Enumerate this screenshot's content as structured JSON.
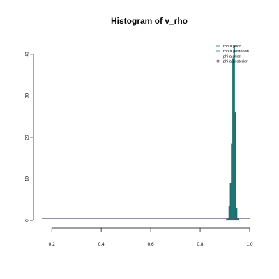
{
  "chart_data": {
    "type": "bar",
    "title": "Histogram of v_rho",
    "xlabel": "",
    "ylabel": "",
    "xlim": [
      0.16,
      1.0
    ],
    "ylim": [
      0,
      43
    ],
    "x_ticks": [
      0.2,
      0.4,
      0.6,
      0.8,
      1.0
    ],
    "x_tick_labels": [
      "0.2",
      "0.4",
      "0.6",
      "0.8",
      "1.0"
    ],
    "y_ticks": [
      0,
      10,
      20,
      30,
      40
    ],
    "y_tick_labels": [
      "0",
      "10",
      "20",
      "30",
      "40"
    ],
    "bar_color": "#1a7070",
    "bins": [
      {
        "x0": 0.905,
        "x1": 0.91,
        "count": 0.3
      },
      {
        "x0": 0.91,
        "x1": 0.915,
        "count": 0.6
      },
      {
        "x0": 0.915,
        "x1": 0.92,
        "count": 3.5
      },
      {
        "x0": 0.92,
        "x1": 0.925,
        "count": 9.0
      },
      {
        "x0": 0.925,
        "x1": 0.93,
        "count": 18.5
      },
      {
        "x0": 0.93,
        "x1": 0.935,
        "count": 39.0
      },
      {
        "x0": 0.935,
        "x1": 0.94,
        "count": 42.0
      },
      {
        "x0": 0.94,
        "x1": 0.945,
        "count": 26.0
      },
      {
        "x0": 0.945,
        "x1": 0.95,
        "count": 3.0
      },
      {
        "x0": 0.95,
        "x1": 0.955,
        "count": 0.5
      }
    ],
    "lines": [
      {
        "name": "rho a priori",
        "color": "#1a7070",
        "y": 0.5
      },
      {
        "name": "phi a priori",
        "color": "#7a3a7a",
        "y": 0.55
      }
    ],
    "legend": {
      "position": "top-right",
      "entries": [
        {
          "label": "rho a priori",
          "symbol": "line",
          "color": "#1a7070"
        },
        {
          "label": "rho a posteriori",
          "symbol": "square",
          "color": "#1a7070"
        },
        {
          "label": "phi a priori",
          "symbol": "line",
          "color": "#7a3a7a"
        },
        {
          "label": "phi a posteriori",
          "symbol": "circle",
          "color": "#7a3a7a"
        }
      ]
    }
  }
}
